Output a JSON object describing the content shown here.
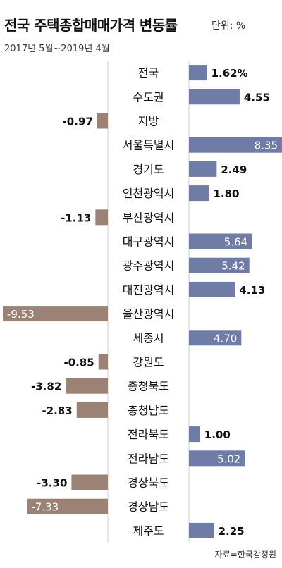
{
  "header": {
    "title": "전국 주택종합매매가격 변동률",
    "unit": "단위: %",
    "period": "2017년 5월~2019년 4월"
  },
  "footer": {
    "source": "자료=한국감정원"
  },
  "colors": {
    "positive": "#6f7ca6",
    "negative": "#9b8275",
    "axis": "#cfcfcf",
    "text": "#111111",
    "light_text": "#ffffff"
  },
  "chart_data": {
    "type": "bar",
    "orientation": "horizontal",
    "categories": [
      "전국",
      "수도권",
      "지방",
      "서울특별시",
      "경기도",
      "인천광역시",
      "부산광역시",
      "대구광역시",
      "광주광역시",
      "대전광역시",
      "울산광역시",
      "세종시",
      "강원도",
      "충청북도",
      "충청남도",
      "전라북도",
      "전라남도",
      "경상북도",
      "경상남도",
      "제주도"
    ],
    "values": [
      1.62,
      4.55,
      -0.97,
      8.35,
      2.49,
      1.8,
      -1.13,
      5.64,
      5.42,
      4.13,
      -9.53,
      4.7,
      -0.85,
      -3.82,
      -2.83,
      1.0,
      5.02,
      -3.3,
      -7.33,
      2.25
    ],
    "value_labels": [
      "1.62%",
      "4.55",
      "-0.97",
      "8.35",
      "2.49",
      "1.80",
      "-1.13",
      "5.64",
      "5.42",
      "4.13",
      "-9.53",
      "4.70",
      "-0.85",
      "-3.82",
      "-2.83",
      "1.00",
      "5.02",
      "-3.30",
      "-7.33",
      "2.25"
    ],
    "xlim": [
      -9.53,
      8.35
    ],
    "grid": false,
    "legend": "none"
  }
}
